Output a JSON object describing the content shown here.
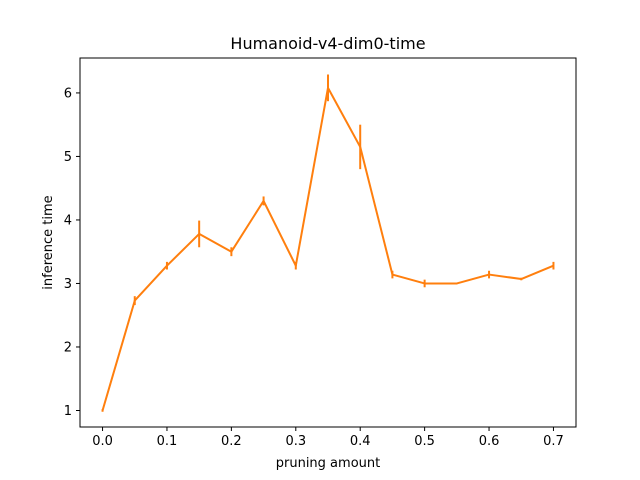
{
  "chart_data": {
    "type": "line",
    "title": "Humanoid-v4-dim0-time",
    "xlabel": "pruning amount",
    "ylabel": "inference time",
    "xlim": [
      -0.035,
      0.735
    ],
    "ylim": [
      0.74,
      6.55
    ],
    "xticks": [
      0.0,
      0.1,
      0.2,
      0.3,
      0.4,
      0.5,
      0.6,
      0.7
    ],
    "xtick_labels": [
      "0.0",
      "0.1",
      "0.2",
      "0.3",
      "0.4",
      "0.5",
      "0.6",
      "0.7"
    ],
    "yticks": [
      1,
      2,
      3,
      4,
      5,
      6
    ],
    "ytick_labels": [
      "1",
      "2",
      "3",
      "4",
      "5",
      "6"
    ],
    "grid": false,
    "legend": false,
    "series": [
      {
        "color": "#ff7f0e",
        "x": [
          0.0,
          0.05,
          0.1,
          0.15,
          0.2,
          0.25,
          0.3,
          0.35,
          0.4,
          0.45,
          0.5,
          0.55,
          0.6,
          0.65,
          0.7
        ],
        "y": [
          1.0,
          2.73,
          3.28,
          3.78,
          3.5,
          4.3,
          3.28,
          6.08,
          5.15,
          3.14,
          3.0,
          3.0,
          3.14,
          3.07,
          3.28
        ],
        "yerr": [
          0.02,
          0.07,
          0.06,
          0.21,
          0.07,
          0.07,
          0.06,
          0.21,
          0.35,
          0.06,
          0.06,
          0.01,
          0.06,
          0.02,
          0.06
        ]
      }
    ]
  }
}
